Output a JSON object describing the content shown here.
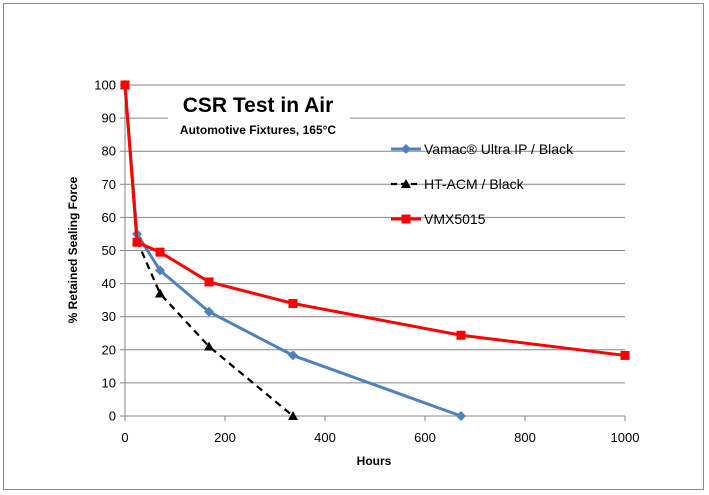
{
  "chart_data": {
    "type": "line",
    "title": "CSR Test in Air",
    "subtitle": "Automotive Fixtures, 165°C",
    "xlabel": "Hours",
    "ylabel": "% Retained Sealing Force",
    "xlim": [
      0,
      1000
    ],
    "ylim": [
      0,
      100
    ],
    "xticks": [
      "0",
      "200",
      "400",
      "600",
      "800",
      "1000"
    ],
    "yticks": [
      "0",
      "10",
      "20",
      "30",
      "40",
      "50",
      "60",
      "70",
      "80",
      "90",
      "100"
    ],
    "grid": "horizontal",
    "legend_position": "right",
    "series": [
      {
        "name": "Vamac® Ultra IP / Black",
        "color": "#4f81bd",
        "marker": "diamond",
        "dash": "solid",
        "points": [
          [
            0,
            100
          ],
          [
            24,
            55
          ],
          [
            70,
            44
          ],
          [
            168,
            31.5
          ],
          [
            336,
            18.3
          ],
          [
            672,
            0
          ]
        ]
      },
      {
        "name": "HT-ACM / Black",
        "color": "#000000",
        "marker": "triangle",
        "dash": "dashed",
        "points": [
          [
            0,
            100
          ],
          [
            24,
            53
          ],
          [
            70,
            37
          ],
          [
            168,
            21
          ],
          [
            336,
            0
          ]
        ]
      },
      {
        "name": "VMX5015",
        "color": "#ff0000",
        "marker": "square",
        "dash": "solid",
        "points": [
          [
            0,
            100
          ],
          [
            24,
            52.5
          ],
          [
            70,
            49.5
          ],
          [
            168,
            40.5
          ],
          [
            336,
            34
          ],
          [
            672,
            24.4
          ],
          [
            1000,
            18.3
          ]
        ]
      }
    ]
  }
}
